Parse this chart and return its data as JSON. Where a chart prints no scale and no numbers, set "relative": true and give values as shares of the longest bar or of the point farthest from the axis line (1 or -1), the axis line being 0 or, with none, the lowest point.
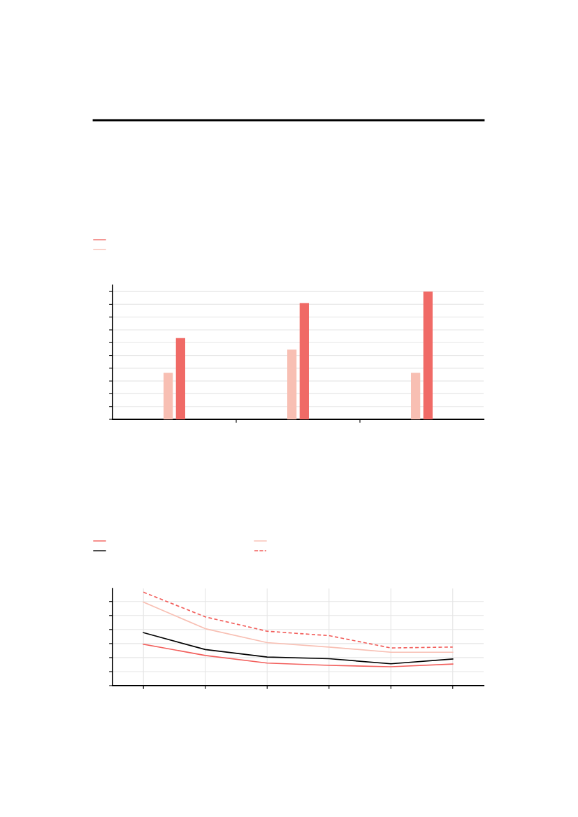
{
  "chart_data": [
    {
      "type": "bar",
      "relative": true,
      "categories": [
        null,
        null,
        null
      ],
      "grid": "y",
      "series": [
        {
          "color": "#f8bfb3",
          "values": [
            0.364,
            0.545,
            0.364
          ]
        },
        {
          "color": "#f06a66",
          "values": [
            0.636,
            0.909,
            1
          ]
        }
      ]
    },
    {
      "type": "line",
      "relative": true,
      "categories": [
        null,
        null,
        null,
        null,
        null,
        null
      ],
      "grid": true,
      "marker": "none",
      "series": [
        {
          "color": "#f25f5c",
          "values": [
            0.443,
            0.323,
            0.241,
            0.217,
            0.202,
            0.231
          ]
        },
        {
          "color": "#000000",
          "values": [
            0.567,
            0.386,
            0.306,
            0.288,
            0.234,
            0.285
          ]
        },
        {
          "color": "#f8bfb3",
          "values": [
            0.894,
            0.609,
            0.46,
            0.413,
            0.357,
            0.357
          ]
        },
        {
          "color": "#f25f5c",
          "line_style": "dashed",
          "values": [
            1,
            0.736,
            0.582,
            0.535,
            0.403,
            0.413
          ]
        }
      ]
    }
  ]
}
